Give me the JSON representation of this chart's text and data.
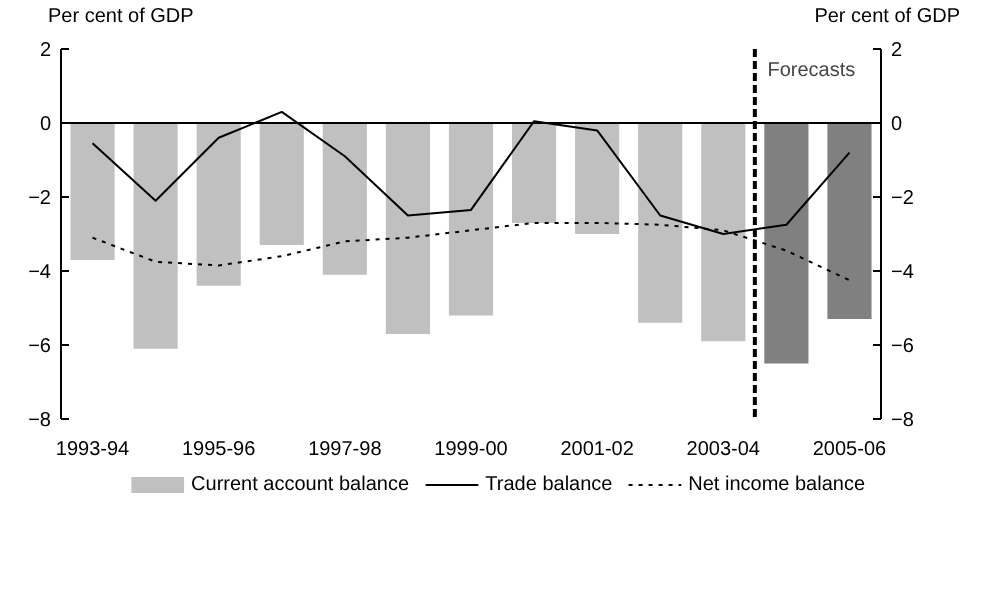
{
  "chart_data": {
    "type": "bar",
    "ylabel": "Per cent of GDP",
    "y2label": "Per cent of GDP",
    "categories": [
      "1993-94",
      null,
      "1995-96",
      null,
      "1997-98",
      null,
      "1999-00",
      null,
      "2001-02",
      null,
      "2003-04",
      null,
      "2005-06"
    ],
    "series": [
      {
        "name": "Current account balance",
        "color": "#c0c0c0",
        "colors": [
          "#c0c0c0",
          "#c0c0c0",
          "#c0c0c0",
          "#c0c0c0",
          "#c0c0c0",
          "#c0c0c0",
          "#c0c0c0",
          "#c0c0c0",
          "#c0c0c0",
          "#c0c0c0",
          "#c0c0c0",
          "#808080",
          "#808080"
        ],
        "values": [
          -3.7,
          -6.1,
          -4.4,
          -3.3,
          -4.1,
          -5.7,
          -5.2,
          -2.7,
          -3.0,
          -5.4,
          -5.9,
          -6.5,
          -5.3
        ]
      },
      {
        "name": "Trade balance",
        "type": "line",
        "color": "#000000",
        "line_style": "solid",
        "values": [
          -0.55,
          -2.1,
          -0.4,
          0.3,
          -0.9,
          -2.5,
          -2.35,
          0.05,
          -0.2,
          -2.5,
          -3.0,
          -2.75,
          -0.8
        ]
      },
      {
        "name": "Net income balance",
        "type": "line",
        "color": "#000000",
        "line_style": "dotted",
        "values": [
          -3.1,
          -3.75,
          -3.85,
          -3.6,
          -3.2,
          -3.1,
          -2.9,
          -2.7,
          -2.7,
          -2.75,
          -2.9,
          -3.45,
          -4.25
        ]
      }
    ],
    "ylim": [
      -8,
      2
    ],
    "yticks": [
      -8,
      -6,
      -4,
      -2,
      0,
      2
    ],
    "y2lim": [
      -8,
      2
    ],
    "y2ticks": [
      -8,
      -6,
      -4,
      -2,
      0,
      2
    ],
    "ref_lines": [
      {
        "axis": "x",
        "value": "2003-04",
        "label": "Forecasts",
        "line_style": "dashed",
        "color": "#000000"
      }
    ],
    "grid": false,
    "legend": "bottom"
  }
}
